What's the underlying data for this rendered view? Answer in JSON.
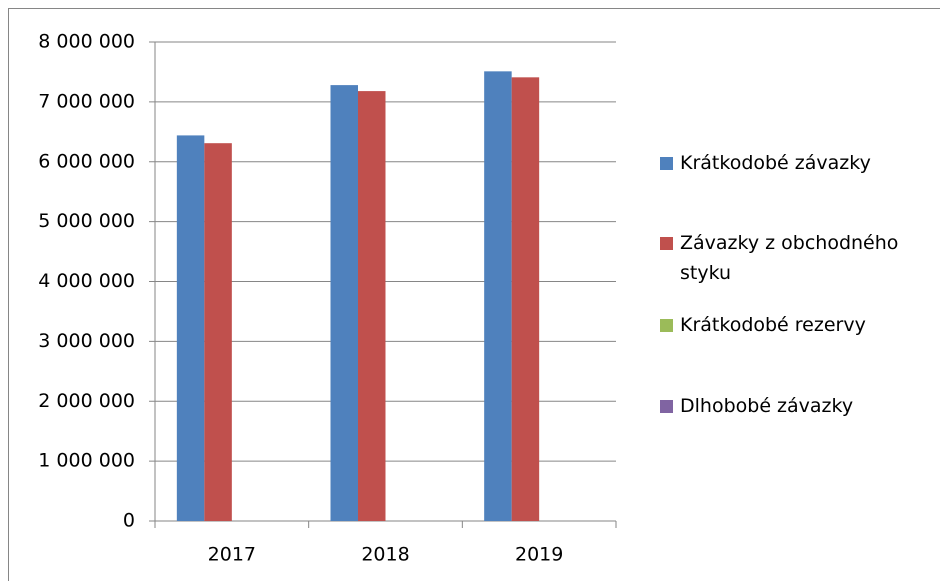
{
  "chart_data": {
    "type": "bar",
    "categories": [
      "2017",
      "2018",
      "2019"
    ],
    "series": [
      {
        "name": "Krátkodobé závazky",
        "color": "#4f81bd",
        "values": [
          6440000,
          7280000,
          7510000
        ]
      },
      {
        "name": "Závazky z obchodného styku",
        "color": "#c0504d",
        "values": [
          6310000,
          7180000,
          7410000
        ]
      },
      {
        "name": "Krátkodobé rezervy",
        "color": "#9bbb59",
        "values": [
          0,
          0,
          0
        ]
      },
      {
        "name": "Dlhobobé závazky",
        "color": "#8064a2",
        "values": [
          0,
          0,
          0
        ]
      }
    ],
    "ylim": [
      0,
      8000000
    ],
    "yticks": [
      {
        "value": 0,
        "label": "0"
      },
      {
        "value": 1000000,
        "label": "1 000 000"
      },
      {
        "value": 2000000,
        "label": "2 000 000"
      },
      {
        "value": 3000000,
        "label": "3 000 000"
      },
      {
        "value": 4000000,
        "label": "4 000 000"
      },
      {
        "value": 5000000,
        "label": "5 000 000"
      },
      {
        "value": 6000000,
        "label": "6 000 000"
      },
      {
        "value": 7000000,
        "label": "7 000 000"
      },
      {
        "value": 8000000,
        "label": "8 000 000"
      }
    ],
    "grid": true,
    "legend": "right"
  }
}
